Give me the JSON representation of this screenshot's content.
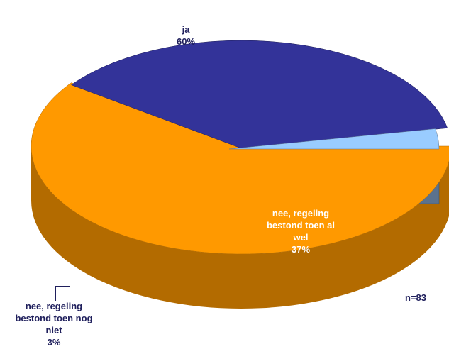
{
  "chart_data": {
    "type": "pie",
    "style": "3d-exploded",
    "slices": [
      {
        "name": "ja",
        "value": 60,
        "label_lines": [
          "ja",
          "60%"
        ],
        "color": "#FF9900",
        "side_color": "#B36B00",
        "text_color": "#1F1F5C"
      },
      {
        "name": "nee, regeling bestond toen al wel",
        "value": 37,
        "label_lines": [
          "nee, regeling",
          "bestond toen al",
          "wel",
          "37%"
        ],
        "color": "#333399",
        "side_color": "#1E1E57",
        "text_color": "#FFFFFF"
      },
      {
        "name": "nee, regeling bestond toen nog niet",
        "value": 3,
        "label_lines": [
          "nee, regeling",
          "bestond toen nog",
          "niet",
          "3%"
        ],
        "color": "#99CCFF",
        "side_color": "#5B728E",
        "text_color": "#1F1F5C"
      }
    ],
    "note": "n=83",
    "label_color": "#1F1F5C"
  }
}
